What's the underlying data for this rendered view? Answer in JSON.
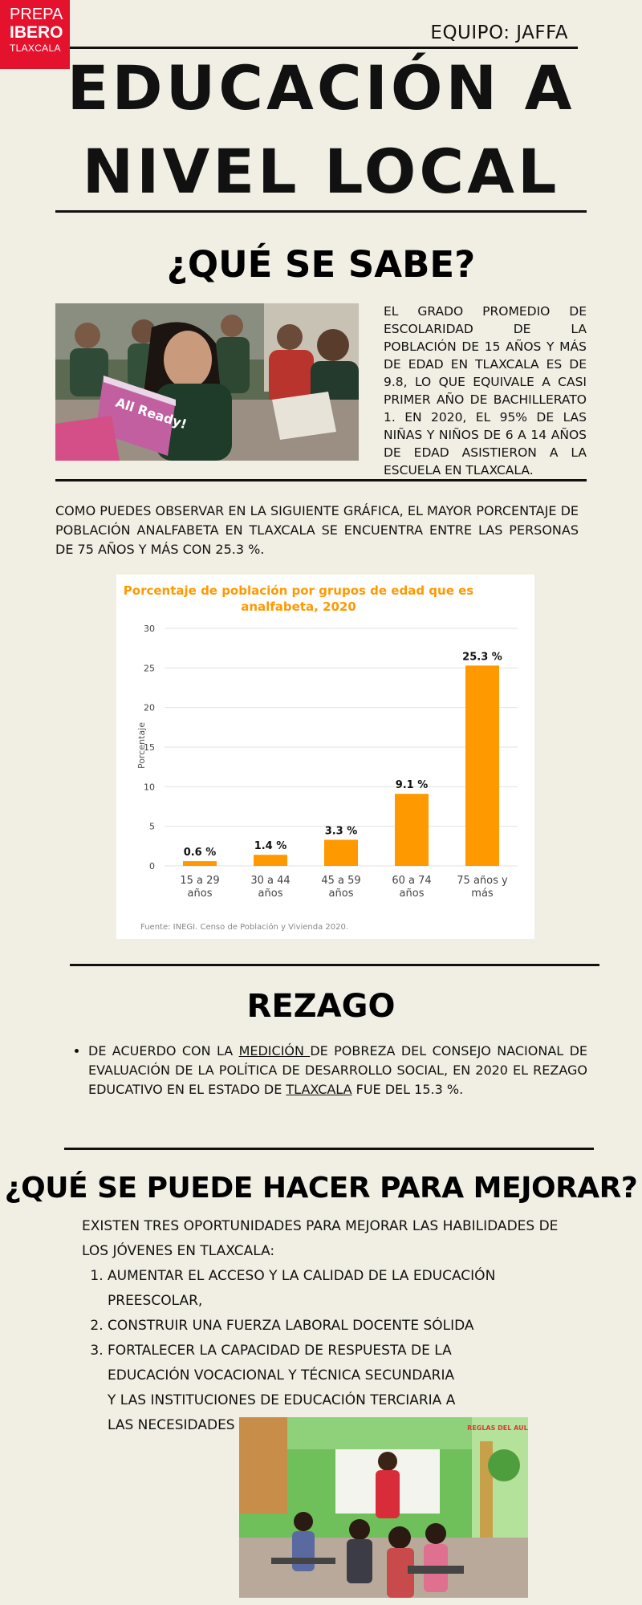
{
  "logo": {
    "line1": "PREPA",
    "line2": "IBERO",
    "line3": "TLAXCALA"
  },
  "team": "EQUIPO: JAFFA",
  "title": {
    "line1": "EDUCACIÓN A",
    "line2": "NIVEL LOCAL"
  },
  "section1": {
    "heading": "¿QUÉ SE SABE?",
    "text": "EL GRADO PROMEDIO DE ESCOLARIDAD DE LA POBLACIÓN DE 15 AÑOS Y MÁS DE EDAD EN TLAXCALA ES DE 9.8, LO QUE EQUIVALE A CASI PRIMER AÑO DE BACHILLERATO 1. EN 2020, EL 95% DE LAS NIÑAS Y NIÑOS DE 6 A 14 AÑOS DE EDAD ASISTIERON A LA ESCUELA EN TLAXCALA.",
    "image_book_text": "All Ready!"
  },
  "section2": {
    "text": "COMO PUEDES OBSERVAR EN LA SIGUIENTE GRÁFICA, EL MAYOR PORCENTAJE DE POBLACIÓN ANALFABETA EN TLAXCALA SE ENCUENTRA ENTRE LAS PERSONAS DE 75 AÑOS Y MÁS CON 25.3 %."
  },
  "chart_data": {
    "type": "bar",
    "title": "Porcentaje de población por grupos de edad que es analfabeta, 2020",
    "title_lines": [
      "Porcentaje de población por grupos de edad que es",
      "analfabeta, 2020"
    ],
    "categories": [
      "15 a 29 años",
      "30 a 44 años",
      "45 a 59 años",
      "60 a 74 años",
      "75 años y más"
    ],
    "category_lines": [
      [
        "15 a 29",
        "años"
      ],
      [
        "30 a 44",
        "años"
      ],
      [
        "45 a 59",
        "años"
      ],
      [
        "60 a 74",
        "años"
      ],
      [
        "75 años y",
        "más"
      ]
    ],
    "values": [
      0.6,
      1.4,
      3.3,
      9.1,
      25.3
    ],
    "data_labels": [
      "0.6 %",
      "1.4 %",
      "3.3 %",
      "9.1 %",
      "25.3 %"
    ],
    "xlabel": "",
    "ylabel": "Porcentaje",
    "ylim": [
      0,
      30
    ],
    "yticks": [
      0,
      5,
      10,
      15,
      20,
      25,
      30
    ],
    "grid": true,
    "bar_color": "#ff9900",
    "title_color": "#ff9900",
    "source": "Fuente: INEGI. Censo de Población y Vivienda 2020."
  },
  "section3": {
    "heading": "REZAGO",
    "bullet": {
      "part1": "DE ACUERDO CON LA ",
      "link1": "MEDICIÓN ",
      "part2": "DE POBREZA DEL CONSEJO NACIONAL DE EVALUACIÓN DE LA POLÍTICA DE DESARROLLO SOCIAL, EN 2020 EL REZAGO EDUCATIVO EN EL ESTADO DE ",
      "link2": "TLAXCALA",
      "part3": " FUE DEL 15.3 %."
    }
  },
  "section4": {
    "heading": "¿QUÉ SE PUEDE HACER PARA MEJORAR?",
    "intro": "EXISTEN TRES OPORTUNIDADES PARA MEJORAR LAS HABILIDADES DE LOS JÓVENES EN TLAXCALA:",
    "items": [
      "AUMENTAR EL ACCESO Y LA CALIDAD DE LA EDUCACIÓN PREESCOLAR,",
      "CONSTRUIR UNA FUERZA LABORAL DOCENTE SÓLIDA",
      "FORTALECER LA CAPACIDAD DE RESPUESTA DE LA EDUCACIÓN VOCACIONAL Y TÉCNICA SECUNDARIA Y LAS INSTITUCIONES DE EDUCACIÓN TERCIARIA A LAS NECESIDADES DEL MERCADO LABORAL"
    ],
    "image_board_text": "REGLAS DEL AULA"
  }
}
